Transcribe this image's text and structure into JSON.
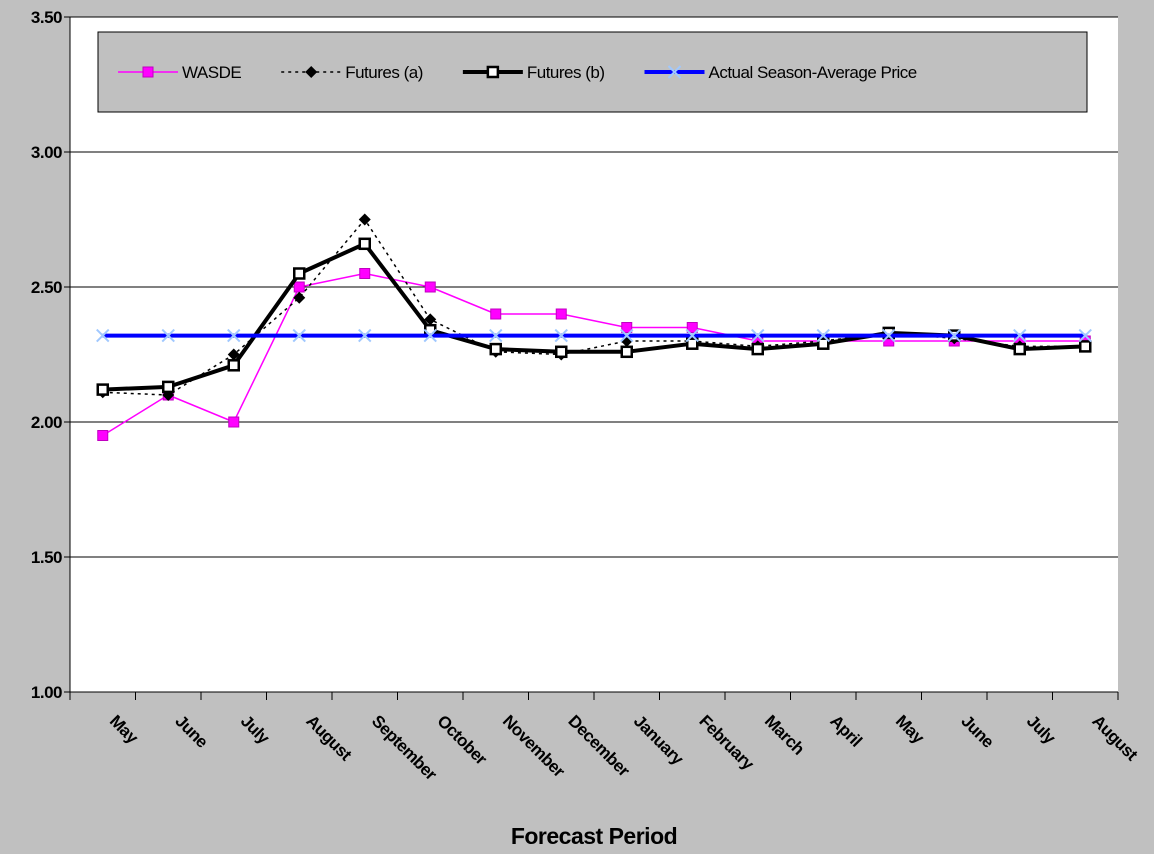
{
  "chart_data": {
    "type": "line",
    "x_label": "Forecast Period",
    "categories": [
      "May",
      "June",
      "July",
      "August",
      "September",
      "October",
      "November",
      "December",
      "January",
      "February",
      "March",
      "April",
      "May",
      "June",
      "July",
      "August"
    ],
    "series": [
      {
        "name": "WASDE",
        "color": "#ff00ff",
        "marker": "square",
        "line_style": "solid",
        "values": [
          1.95,
          2.1,
          2.0,
          2.5,
          2.55,
          2.5,
          2.4,
          2.4,
          2.35,
          2.35,
          2.3,
          2.3,
          2.3,
          2.3,
          2.3,
          2.3
        ]
      },
      {
        "name": "Futures (a)",
        "color": "#000000",
        "marker": "diamond",
        "line_style": "dotted",
        "values": [
          2.11,
          2.1,
          2.25,
          2.46,
          2.75,
          2.38,
          2.26,
          2.25,
          2.3,
          2.3,
          2.28,
          2.3,
          2.33,
          2.31,
          2.28,
          2.28
        ]
      },
      {
        "name": "Futures (b)",
        "color": "#000000",
        "marker": "hollow-square",
        "line_style": "thick",
        "values": [
          2.12,
          2.13,
          2.21,
          2.55,
          2.66,
          2.34,
          2.27,
          2.26,
          2.26,
          2.29,
          2.27,
          2.29,
          2.33,
          2.32,
          2.27,
          2.28
        ]
      },
      {
        "name": "Actual Season-Average Price",
        "color": "#0000ff",
        "marker": "x",
        "line_style": "thick",
        "values": [
          2.32,
          2.32,
          2.32,
          2.32,
          2.32,
          2.32,
          2.32,
          2.32,
          2.32,
          2.32,
          2.32,
          2.32,
          2.32,
          2.32,
          2.32,
          2.32
        ]
      }
    ],
    "ylim": [
      1.0,
      3.5
    ],
    "yticks": [
      {
        "value": 1.0,
        "label": "1.00"
      },
      {
        "value": 1.5,
        "label": "1.50"
      },
      {
        "value": 2.0,
        "label": "2.00"
      },
      {
        "value": 2.5,
        "label": "2.50"
      },
      {
        "value": 3.0,
        "label": "3.00"
      },
      {
        "value": 3.5,
        "label": "3.50"
      }
    ],
    "grid": true,
    "legend": "top"
  }
}
